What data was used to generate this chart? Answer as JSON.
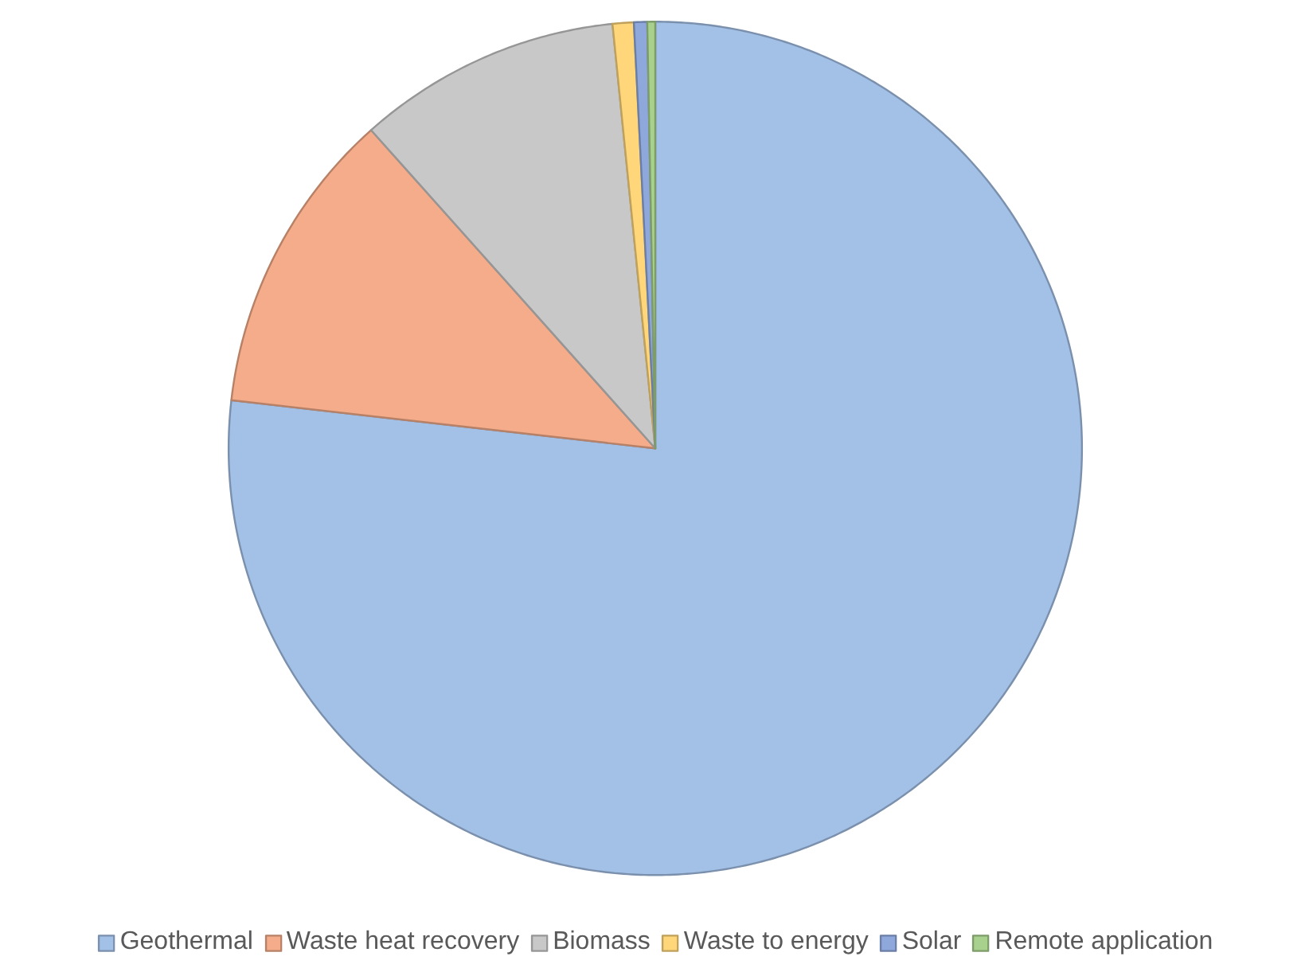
{
  "chart_data": {
    "type": "pie",
    "categories": [
      "Geothermal",
      "Waste heat recovery",
      "Biomass",
      "Waste to energy",
      "Solar",
      "Remote application"
    ],
    "values": [
      76.8,
      11.6,
      10.0,
      0.8,
      0.5,
      0.3
    ],
    "colors": [
      "#a3c0e6",
      "#f5ac8a",
      "#c8c8c8",
      "#ffd77a",
      "#8fa8dc",
      "#a9d18e"
    ],
    "legend": "bottom"
  }
}
